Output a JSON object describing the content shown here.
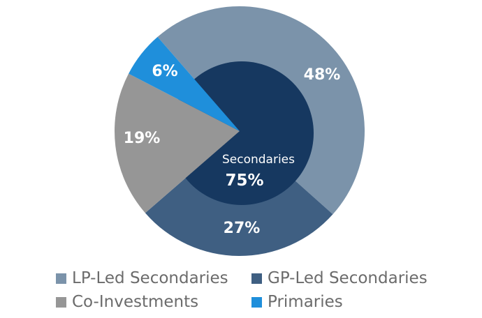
{
  "chart_data": {
    "type": "pie",
    "title": "",
    "slices": [
      {
        "name": "LP-Led Secondaries",
        "value": 48,
        "label": "48%",
        "color": "#7b93aa"
      },
      {
        "name": "GP-Led Secondaries",
        "value": 27,
        "label": "27%",
        "color": "#3f5f82"
      },
      {
        "name": "Co-Investments",
        "value": 19,
        "label": "19%",
        "color": "#969696"
      },
      {
        "name": "Primaries",
        "value": 6,
        "label": "6%",
        "color": "#1f8fdb"
      }
    ],
    "inner": {
      "name": "Secondaries",
      "value": 75,
      "label": "75%",
      "color": "#163860"
    },
    "legend_position": "bottom"
  }
}
